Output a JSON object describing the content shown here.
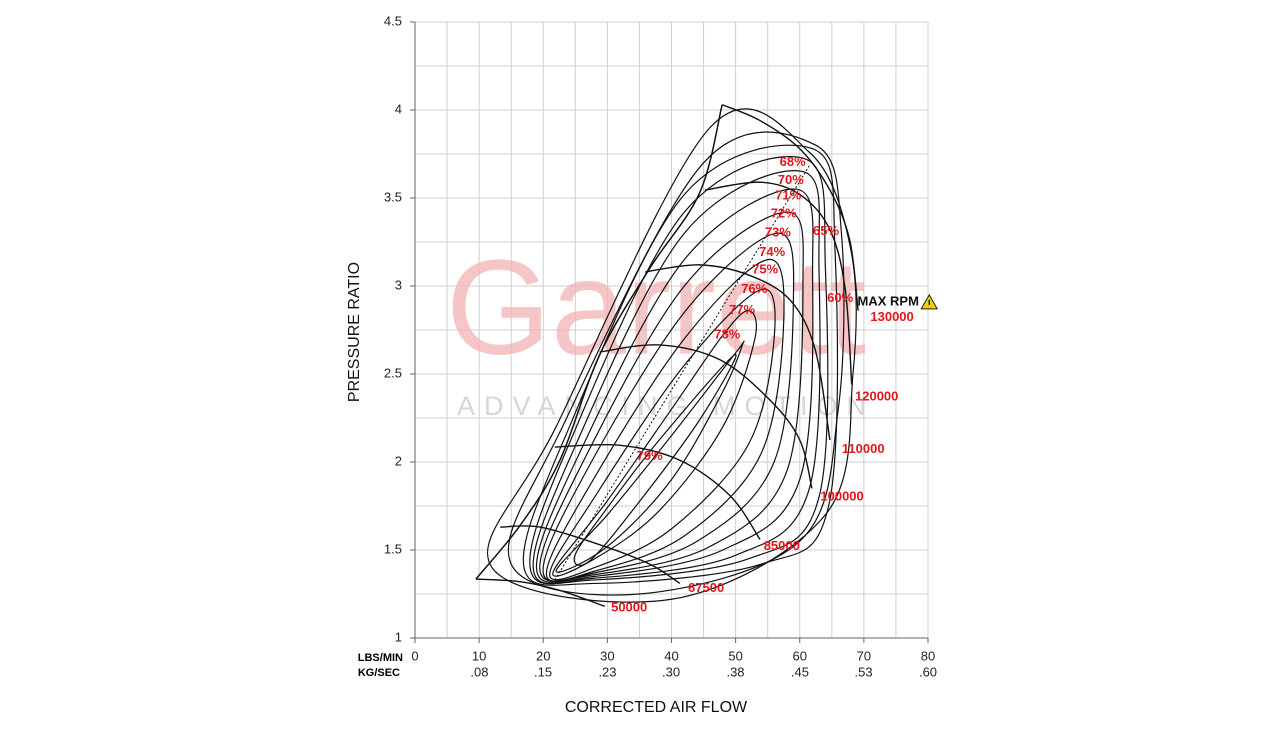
{
  "chart_data": {
    "type": "compressor-map",
    "watermark": {
      "title": "Garrett",
      "subtitle": "ADVANCING MOTION"
    },
    "ylabel": "PRESSURE RATIO",
    "xlabel": "CORRECTED AIR FLOW",
    "x_row_label": "LBS/MIN",
    "x2_row_label": "KG/SEC",
    "xlim": [
      0,
      80
    ],
    "xticks": [
      0,
      10,
      20,
      30,
      40,
      50,
      60,
      70,
      80
    ],
    "x2lim": [
      0,
      0.605
    ],
    "x2ticks": [
      {
        "value": 0.076,
        "label": ".08"
      },
      {
        "value": 0.151,
        "label": ".15"
      },
      {
        "value": 0.227,
        "label": ".23"
      },
      {
        "value": 0.302,
        "label": ".30"
      },
      {
        "value": 0.378,
        "label": ".38"
      },
      {
        "value": 0.454,
        "label": ".45"
      },
      {
        "value": 0.529,
        "label": ".53"
      },
      {
        "value": 0.605,
        "label": ".60"
      }
    ],
    "ylim": [
      1,
      4.5
    ],
    "yticks": [
      1,
      1.5,
      2,
      2.5,
      3,
      3.5,
      4,
      4.5
    ],
    "xgrid": [
      0,
      5,
      10,
      15,
      20,
      25,
      30,
      35,
      40,
      45,
      50,
      55,
      60,
      65,
      70,
      75,
      80
    ],
    "ygrid": [
      1,
      1.25,
      1.5,
      1.75,
      2,
      2.25,
      2.5,
      2.75,
      3,
      3.25,
      3.5,
      3.75,
      4,
      4.25,
      4.5
    ],
    "line_color": "#111111",
    "label_color": "#e3161d",
    "surge_line": {
      "x": [
        9.5,
        16.4,
        22.6,
        28.8,
        36.6,
        44.4,
        47.9
      ],
      "y": [
        1.335,
        1.64,
        2.01,
        2.61,
        3.1,
        3.53,
        4.03
      ]
    },
    "max_efficiency_line": {
      "x": [
        21.8,
        61.6
      ],
      "y": [
        1.33,
        3.69
      ]
    },
    "speed_lines": [
      {
        "label": "50000",
        "label_at": [
          33.4,
          1.17
        ],
        "x": [
          9.5,
          16.4,
          22.6,
          29.6
        ],
        "y": [
          1.335,
          1.32,
          1.27,
          1.18
        ]
      },
      {
        "label": "67500",
        "label_at": [
          45.4,
          1.28
        ],
        "x": [
          13.3,
          19.5,
          28.8,
          36.6,
          41.3
        ],
        "y": [
          1.63,
          1.63,
          1.53,
          1.42,
          1.31
        ]
      },
      {
        "label": "85000",
        "label_at": [
          57.2,
          1.52
        ],
        "x": [
          21.8,
          32.0,
          41.3,
          49.1,
          53.8
        ],
        "y": [
          2.085,
          2.095,
          2.01,
          1.81,
          1.56
        ]
      },
      {
        "label": "100000",
        "label_at": [
          66.6,
          1.8
        ],
        "x": [
          28.8,
          38.2,
          47.6,
          55.4,
          60.0,
          61.9
        ],
        "y": [
          2.625,
          2.665,
          2.58,
          2.35,
          2.125,
          1.85
        ]
      },
      {
        "label": "110000",
        "label_at": [
          69.9,
          2.07
        ],
        "x": [
          35.9,
          44.4,
          52.2,
          58.5,
          62.4,
          64.7
        ],
        "y": [
          3.08,
          3.12,
          3.06,
          2.92,
          2.64,
          2.125
        ]
      },
      {
        "label": "120000",
        "label_at": [
          72.0,
          2.37
        ],
        "x": [
          45.2,
          53.8,
          60.0,
          64.7,
          67.1,
          68.1
        ],
        "y": [
          3.545,
          3.59,
          3.52,
          3.32,
          2.98,
          2.44
        ]
      },
      {
        "label": "130000",
        "label_at": [
          74.4,
          2.82
        ],
        "x": [
          47.9,
          53.8,
          60.0,
          64.7,
          67.8,
          69.1
        ],
        "y": [
          4.03,
          3.94,
          3.78,
          3.545,
          3.26,
          2.86
        ]
      }
    ],
    "max_rpm": {
      "label": "MAX RPM",
      "label_at": [
        73.8,
        2.91
      ]
    },
    "islands": [
      {
        "label": "79%",
        "label_at": [
          36.6,
          2.03
        ],
        "x": [
          24.95,
          30.4,
          38.2,
          49.9,
          44.4,
          35.1,
          27.3
        ],
        "y": [
          1.47,
          1.76,
          2.13,
          2.61,
          2.24,
          1.78,
          1.44
        ]
      },
      {
        "label": "78%",
        "label_at": [
          48.7,
          2.72
        ],
        "x": [
          22,
          30,
          40,
          50,
          51,
          48,
          40,
          30
        ],
        "y": [
          1.38,
          1.7,
          2.15,
          2.62,
          2.66,
          2.4,
          1.9,
          1.52
        ]
      },
      {
        "label": "77%",
        "label_at": [
          51.0,
          2.86
        ],
        "x": [
          21.5,
          30,
          40,
          48,
          52,
          53,
          48,
          38,
          28
        ],
        "y": [
          1.37,
          1.78,
          2.3,
          2.72,
          2.86,
          2.7,
          2.2,
          1.72,
          1.45
        ]
      },
      {
        "label": "76%",
        "label_at": [
          52.9,
          2.98
        ],
        "x": [
          21,
          28,
          42,
          54,
          56,
          52,
          40,
          28
        ],
        "y": [
          1.36,
          1.8,
          2.55,
          2.98,
          2.7,
          2.1,
          1.62,
          1.4
        ]
      },
      {
        "label": "75%",
        "label_at": [
          54.6,
          3.09
        ],
        "x": [
          20.5,
          27,
          42,
          55,
          57.5,
          54,
          42,
          28
        ],
        "y": [
          1.36,
          1.85,
          2.7,
          3.15,
          2.8,
          2.05,
          1.58,
          1.38
        ]
      },
      {
        "label": "74%",
        "label_at": [
          55.7,
          3.19
        ],
        "x": [
          20,
          26,
          42,
          56.5,
          59,
          56,
          44,
          28
        ],
        "y": [
          1.37,
          1.9,
          2.85,
          3.3,
          2.9,
          2.0,
          1.55,
          1.37
        ]
      },
      {
        "label": "73%",
        "label_at": [
          56.6,
          3.3
        ],
        "x": [
          19.5,
          25.5,
          42,
          58,
          60.5,
          58,
          46,
          28
        ],
        "y": [
          1.38,
          1.95,
          3.0,
          3.42,
          3.0,
          1.95,
          1.52,
          1.36
        ]
      },
      {
        "label": "72%",
        "label_at": [
          57.5,
          3.41
        ],
        "x": [
          19,
          25,
          42,
          59.5,
          62,
          60,
          48,
          28
        ],
        "y": [
          1.38,
          2.0,
          3.15,
          3.55,
          3.05,
          1.9,
          1.5,
          1.35
        ]
      },
      {
        "label": "71%",
        "label_at": [
          58.2,
          3.51
        ],
        "x": [
          18.5,
          24.5,
          42,
          60.5,
          63,
          61.5,
          50,
          28
        ],
        "y": [
          1.38,
          2.05,
          3.3,
          3.65,
          3.1,
          1.85,
          1.47,
          1.34
        ]
      },
      {
        "label": "70%",
        "label_at": [
          58.6,
          3.6
        ],
        "x": [
          18,
          24,
          42,
          61,
          64,
          63,
          52,
          28
        ],
        "y": [
          1.39,
          2.1,
          3.42,
          3.72,
          3.1,
          1.8,
          1.45,
          1.33
        ]
      },
      {
        "label": "68%",
        "label_at": [
          58.9,
          3.7
        ],
        "x": [
          17,
          23.5,
          42,
          62,
          65.5,
          64.5,
          54,
          28
        ],
        "y": [
          1.4,
          2.15,
          3.52,
          3.78,
          3.2,
          1.75,
          1.42,
          1.31
        ]
      },
      {
        "label": "65%",
        "label_at": [
          64.1,
          3.31
        ],
        "x": [
          15,
          23,
          45,
          62.5,
          66.5,
          66,
          60,
          35
        ],
        "y": [
          1.42,
          2.2,
          3.7,
          3.8,
          3.3,
          2.3,
          1.55,
          1.25
        ]
      },
      {
        "label": "60%",
        "label_at": [
          66.3,
          2.93
        ],
        "x": [
          12,
          22,
          46,
          61.5,
          68,
          68.3,
          64,
          40
        ],
        "y": [
          1.4,
          2.2,
          3.9,
          3.76,
          3.2,
          2.5,
          1.7,
          1.22
        ]
      }
    ]
  }
}
